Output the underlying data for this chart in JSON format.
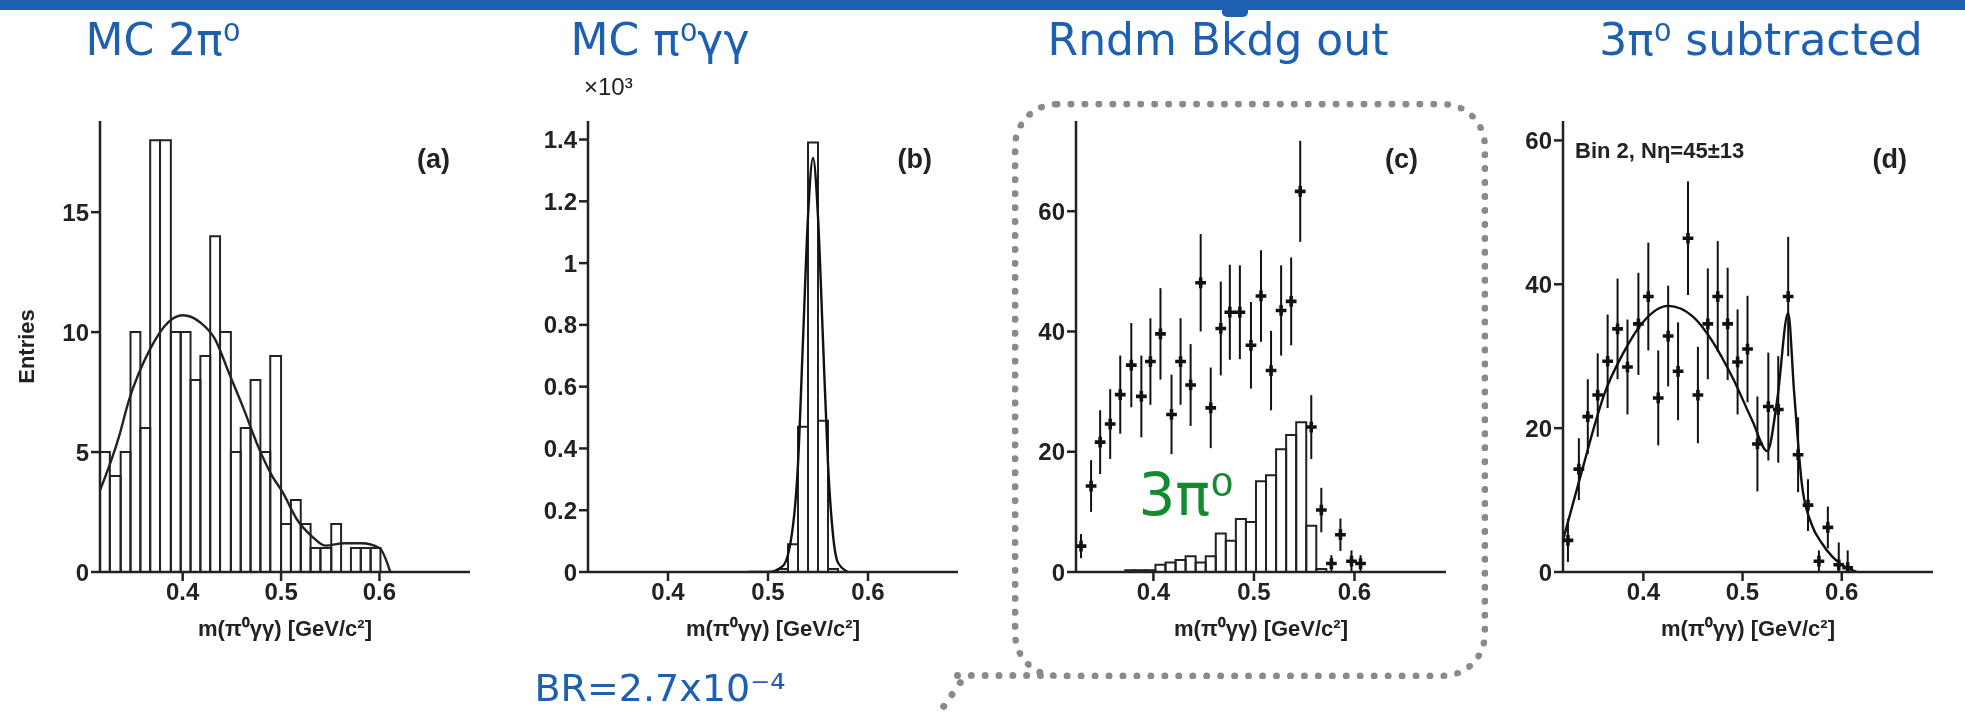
{
  "chart_data": [
    {
      "type": "histogram",
      "title": "MC 2π⁰",
      "xlabel": "m(π⁰γγ) [GeV/c²]",
      "ylabel": "Entries",
      "xlim": [
        0.316,
        0.692
      ],
      "xticks": [
        0.4,
        0.5,
        0.6
      ],
      "ylim": [
        0,
        18.8
      ],
      "yticks": [
        0,
        5,
        10,
        15
      ],
      "annotations": [
        "(a)"
      ],
      "series": [
        {
          "color": "#222222",
          "bins": [
            0.316,
            0.326,
            0.337,
            0.347,
            0.357,
            0.367,
            0.377,
            0.388,
            0.398,
            0.408,
            0.418,
            0.428,
            0.438,
            0.449,
            0.459,
            0.469,
            0.479,
            0.489,
            0.5,
            0.51,
            0.52,
            0.53,
            0.54,
            0.551,
            0.561,
            0.571,
            0.581,
            0.591,
            0.601
          ],
          "values": [
            5,
            4,
            5,
            10,
            6,
            18,
            18,
            10,
            10,
            8,
            9,
            14,
            10,
            5,
            6,
            8,
            5,
            9,
            2,
            3,
            2,
            1,
            1,
            2,
            0,
            1,
            1,
            1
          ]
        },
        {
          "type": "line",
          "color": "#222222",
          "x": [
            0.316,
            0.335,
            0.345,
            0.367,
            0.385,
            0.4,
            0.418,
            0.433,
            0.447,
            0.462,
            0.476,
            0.491,
            0.502,
            0.516,
            0.531,
            0.545,
            0.564,
            0.582,
            0.6,
            0.611
          ],
          "values": [
            3.4,
            5.6,
            7.1,
            9.3,
            10.4,
            10.7,
            10.4,
            9.7,
            8.3,
            6.8,
            5.3,
            4.0,
            3.3,
            2.2,
            1.5,
            1.1,
            1.2,
            1.2,
            1.0,
            0
          ]
        }
      ]
    },
    {
      "type": "histogram",
      "title": "MC π⁰γγ",
      "xlabel": "m(π⁰γγ) [GeV/c²]",
      "xlim": [
        0.32,
        0.69
      ],
      "xticks": [
        0.4,
        0.5,
        0.6
      ],
      "ylim": [
        0,
        1.46
      ],
      "yticks": [
        0,
        0.2,
        0.4,
        0.6,
        0.8,
        1,
        1.2,
        1.4
      ],
      "annotations": [
        "×10³",
        "(b)",
        "BR=2.7x10⁻⁴"
      ],
      "series": [
        {
          "color": "#222222",
          "bins": [
            0.51,
            0.52,
            0.53,
            0.54,
            0.55,
            0.56,
            0.57
          ],
          "values": [
            0.01,
            0.09,
            0.47,
            1.39,
            0.49,
            0.01
          ]
        },
        {
          "type": "line",
          "color": "#111111",
          "x": [
            0.48,
            0.5,
            0.515,
            0.525,
            0.53,
            0.535,
            0.54,
            0.545,
            0.55,
            0.555,
            0.56,
            0.565,
            0.57,
            0.58
          ],
          "values": [
            0,
            0,
            0.02,
            0.15,
            0.35,
            0.75,
            1.15,
            1.34,
            1.15,
            0.75,
            0.35,
            0.12,
            0.03,
            0
          ]
        }
      ]
    },
    {
      "type": "scatter",
      "title": "Rndm Bkdg out",
      "xlabel": "m(π⁰γγ) [GeV/c²]",
      "xlim": [
        0.323,
        0.691
      ],
      "xticks": [
        0.4,
        0.5,
        0.6
      ],
      "ylim": [
        0,
        75
      ],
      "yticks": [
        0,
        20,
        40,
        60
      ],
      "annotations": [
        "(c)",
        "3π⁰"
      ],
      "series": [
        {
          "marker": "cross",
          "color": "#111111",
          "x": [
            0.328,
            0.338,
            0.347,
            0.357,
            0.367,
            0.378,
            0.388,
            0.397,
            0.407,
            0.418,
            0.427,
            0.437,
            0.447,
            0.457,
            0.467,
            0.476,
            0.486,
            0.497,
            0.507,
            0.517,
            0.527,
            0.537,
            0.546,
            0.557,
            0.567,
            0.577,
            0.586,
            0.597,
            0.606
          ],
          "values": [
            4.3,
            14.3,
            21.6,
            24.6,
            29.5,
            34.4,
            29.2,
            35,
            39.6,
            26.2,
            35,
            31.1,
            48.1,
            27.3,
            40.5,
            43.2,
            43.2,
            37.7,
            45.9,
            33.5,
            43.5,
            45,
            63.3,
            24.1,
            10.3,
            1.4,
            6.2,
            1.8,
            1.4
          ],
          "errors": [
            2,
            4.3,
            5.3,
            5.8,
            6.5,
            7,
            6.8,
            7.2,
            7.6,
            6.6,
            7.2,
            6.8,
            8.1,
            6.7,
            7.8,
            7.9,
            7.8,
            7.2,
            7.6,
            6.6,
            7.5,
            7.3,
            8.4,
            5.3,
            3.7,
            1.4,
            2.7,
            1.8,
            1.4
          ]
        },
        {
          "type": "histogram",
          "color": "#222222",
          "bins": [
            0.372,
            0.382,
            0.392,
            0.402,
            0.412,
            0.422,
            0.432,
            0.442,
            0.452,
            0.462,
            0.472,
            0.482,
            0.492,
            0.502,
            0.512,
            0.522,
            0.532,
            0.542,
            0.552,
            0.562,
            0.572
          ],
          "values": [
            0.3,
            0.3,
            0.3,
            1.2,
            1.6,
            2.0,
            2.6,
            1.6,
            2.6,
            6.4,
            5.2,
            8.8,
            8.3,
            15.1,
            16.1,
            20.4,
            22.8,
            24.9,
            7.7,
            0.5
          ]
        }
      ]
    },
    {
      "type": "scatter",
      "title": "3π⁰ subtracted",
      "xlabel": "m(π⁰γγ) [GeV/c²]",
      "xlim": [
        0.319,
        0.692
      ],
      "xticks": [
        0.4,
        0.5,
        0.6
      ],
      "ylim": [
        0,
        62.7
      ],
      "yticks": [
        0,
        20,
        40,
        60
      ],
      "annotations": [
        "Bin 2, Nη=45±13",
        "(d)"
      ],
      "series": [
        {
          "marker": "cross",
          "color": "#111111",
          "x": [
            0.324,
            0.335,
            0.344,
            0.354,
            0.364,
            0.374,
            0.384,
            0.395,
            0.405,
            0.415,
            0.425,
            0.435,
            0.445,
            0.455,
            0.465,
            0.475,
            0.485,
            0.495,
            0.505,
            0.515,
            0.526,
            0.536,
            0.546,
            0.556,
            0.566,
            0.577,
            0.586,
            0.597,
            0.606
          ],
          "values": [
            4.4,
            14.3,
            21.6,
            24.6,
            29.3,
            33.8,
            28.5,
            34.5,
            38.3,
            24.2,
            32.8,
            27.9,
            46.4,
            24.6,
            34.5,
            38.3,
            34.5,
            29.2,
            31,
            17.8,
            23,
            22.6,
            38.3,
            16.3,
            9.3,
            1.5,
            6.2,
            1,
            0.6
          ],
          "errors": [
            3,
            4.3,
            5.2,
            5.8,
            6.5,
            7,
            6.6,
            7.1,
            7.5,
            6.6,
            7,
            6.8,
            7.9,
            6.7,
            7.7,
            7.7,
            7.8,
            7.3,
            7.4,
            6.6,
            7.5,
            7.4,
            8.3,
            5.2,
            3.6,
            1.5,
            2.9,
            [
              0,
              4.1
            ],
            [
              0,
              3
            ]
          ]
        },
        {
          "type": "line",
          "color": "#111111",
          "x": [
            0.319,
            0.33,
            0.34,
            0.35,
            0.36,
            0.38,
            0.4,
            0.425,
            0.45,
            0.47,
            0.49,
            0.51,
            0.525,
            0.535,
            0.546,
            0.552,
            0.56,
            0.57,
            0.58,
            0.59,
            0.6,
            0.615
          ],
          "values": [
            4.4,
            10,
            15,
            20,
            24.5,
            30.5,
            34.8,
            37,
            35.5,
            32,
            27,
            21,
            16.8,
            24,
            36,
            25,
            12,
            6.5,
            4,
            2.2,
            1,
            0
          ]
        }
      ]
    }
  ]
}
